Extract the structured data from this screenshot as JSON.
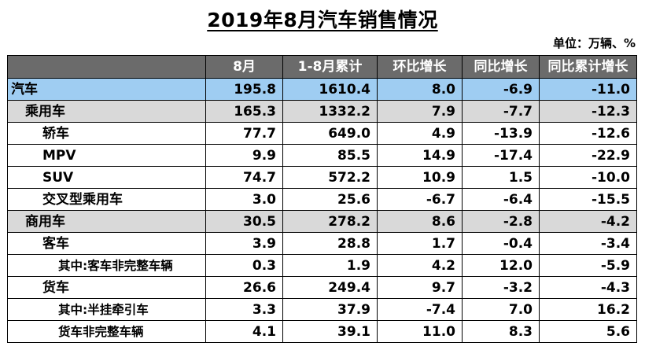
{
  "title": "2019年8月汽车销售情况",
  "unit": "单位：万辆、%",
  "table": {
    "headers": [
      "",
      "8月",
      "1-8月累计",
      "环比增长",
      "同比增长",
      "同比累计增长"
    ],
    "rows": [
      {
        "label": "汽车",
        "level": 0,
        "values": [
          "195.8",
          "1610.4",
          "8.0",
          "-6.9",
          "-11.0"
        ]
      },
      {
        "label": "乘用车",
        "level": 1,
        "values": [
          "165.3",
          "1332.2",
          "7.9",
          "-7.7",
          "-12.3"
        ]
      },
      {
        "label": "轿车",
        "level": 2,
        "values": [
          "77.7",
          "649.0",
          "4.9",
          "-13.9",
          "-12.6"
        ]
      },
      {
        "label": "MPV",
        "level": 2,
        "values": [
          "9.9",
          "85.5",
          "14.9",
          "-17.4",
          "-22.9"
        ]
      },
      {
        "label": "SUV",
        "level": 2,
        "values": [
          "74.7",
          "572.2",
          "10.9",
          "1.5",
          "-10.0"
        ]
      },
      {
        "label": "交叉型乘用车",
        "level": 2,
        "values": [
          "3.0",
          "25.6",
          "-6.7",
          "-6.4",
          "-15.5"
        ]
      },
      {
        "label": "商用车",
        "level": 1,
        "values": [
          "30.5",
          "278.2",
          "8.6",
          "-2.8",
          "-4.2"
        ]
      },
      {
        "label": "客车",
        "level": 2,
        "values": [
          "3.9",
          "28.8",
          "1.7",
          "-0.4",
          "-3.4"
        ]
      },
      {
        "label": "其中:客车非完整车辆",
        "level": 3,
        "values": [
          "0.3",
          "1.9",
          "4.2",
          "12.0",
          "-5.9"
        ]
      },
      {
        "label": "货车",
        "level": 2,
        "values": [
          "26.6",
          "249.4",
          "9.7",
          "-3.2",
          "-4.3"
        ]
      },
      {
        "label": "其中:半挂牵引车",
        "level": 3,
        "values": [
          "3.3",
          "37.9",
          "-7.4",
          "7.0",
          "16.2"
        ]
      },
      {
        "label": "货车非完整车辆",
        "level": 3,
        "values": [
          "4.1",
          "39.1",
          "11.0",
          "8.3",
          "5.6"
        ]
      }
    ]
  }
}
